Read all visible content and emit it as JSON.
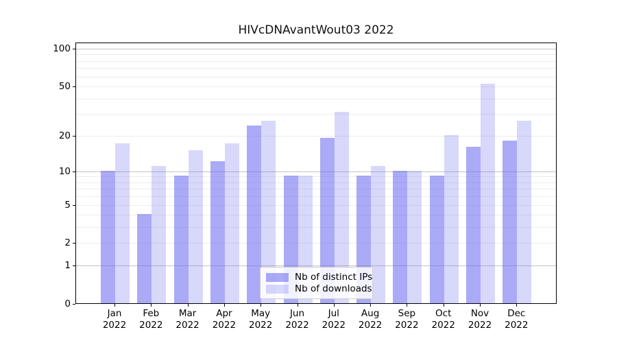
{
  "chart_data": {
    "type": "bar",
    "title": "HIVcDNAvantWout03 2022",
    "yscale": "log1p",
    "ylim": [
      0,
      112
    ],
    "grid": true,
    "legend_position": "lower center",
    "categories": [
      "Jan",
      "Feb",
      "Mar",
      "Apr",
      "May",
      "Jun",
      "Jul",
      "Aug",
      "Sep",
      "Oct",
      "Nov",
      "Dec"
    ],
    "x_year_label": "2022",
    "y_ticks": [
      100,
      50,
      20,
      10,
      5,
      2,
      1,
      0
    ],
    "y_major_gridlines": [
      1,
      10,
      100
    ],
    "y_minor_gridlines": [
      2,
      3,
      4,
      5,
      6,
      7,
      8,
      9,
      20,
      30,
      40,
      50,
      60,
      70,
      80,
      90
    ],
    "grid_major_color": "#c3c3c3",
    "grid_minor_color": "#ededed",
    "axis_color": "#000000",
    "bar_base_color": "#6464f0",
    "series": [
      {
        "name": "Nb of distinct IPs",
        "color": "rgba(100,100,240,0.55)",
        "values": [
          10,
          4,
          9,
          12,
          24,
          9,
          19,
          9,
          10,
          9,
          16,
          18
        ]
      },
      {
        "name": "Nb of downloads",
        "color": "rgba(100,100,240,0.25)",
        "values": [
          17,
          11,
          15,
          17,
          26,
          9,
          31,
          11,
          10,
          20,
          52,
          26
        ]
      }
    ]
  }
}
